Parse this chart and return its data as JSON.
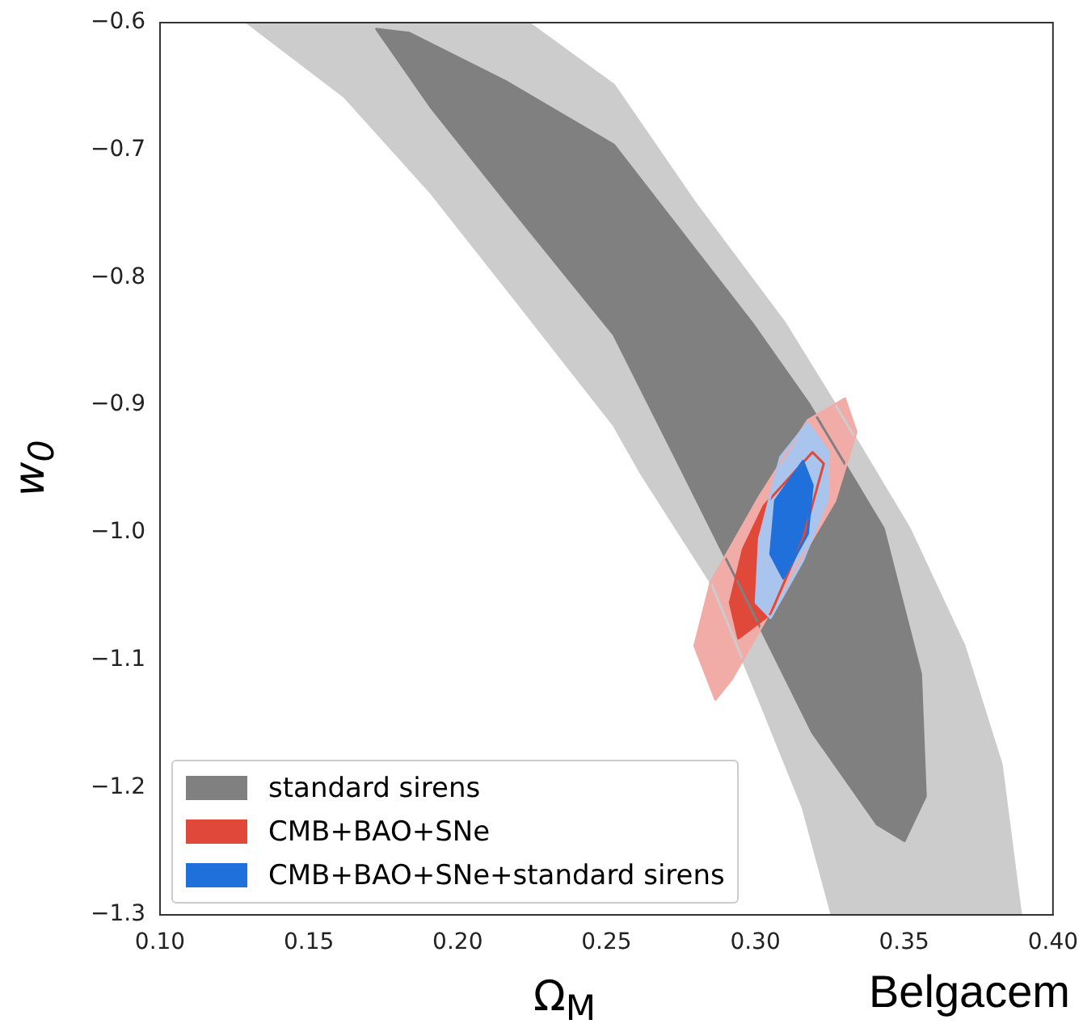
{
  "chart_data": {
    "type": "area",
    "xlabel": "Ω$_{M}$",
    "ylabel": "w$_{0}$",
    "xlim": [
      0.1,
      0.4
    ],
    "ylim": [
      -1.3,
      -0.6
    ],
    "xticks": [
      {
        "value": 0.1,
        "label": "0.10"
      },
      {
        "value": 0.15,
        "label": "0.15"
      },
      {
        "value": 0.2,
        "label": "0.20"
      },
      {
        "value": 0.25,
        "label": "0.25"
      },
      {
        "value": 0.3,
        "label": "0.30"
      },
      {
        "value": 0.35,
        "label": "0.35"
      },
      {
        "value": 0.4,
        "label": "0.40"
      }
    ],
    "yticks": [
      {
        "value": -1.3,
        "label": "−1.3"
      },
      {
        "value": -1.2,
        "label": "−1.2"
      },
      {
        "value": -1.1,
        "label": "−1.1"
      },
      {
        "value": -1.0,
        "label": "−1.0"
      },
      {
        "value": -0.9,
        "label": "−0.9"
      },
      {
        "value": -0.8,
        "label": "−0.8"
      },
      {
        "value": -0.7,
        "label": "−0.7"
      },
      {
        "value": -0.6,
        "label": "−0.6"
      }
    ],
    "grid": false,
    "legend": "bottom left",
    "series": [
      {
        "color": "#cccccc",
        "x": [
          0.1293,
          0.1619,
          0.1912,
          0.2199,
          0.2525,
          0.2617,
          0.285,
          0.3013,
          0.316,
          0.3257,
          0.3892,
          0.3827,
          0.3702,
          0.3518,
          0.329,
          0.31,
          0.2796,
          0.2525,
          0.2237,
          0.1293
        ],
        "values": [
          -0.6,
          -0.658,
          -0.734,
          -0.819,
          -0.916,
          -0.954,
          -1.039,
          -1.131,
          -1.216,
          -1.3,
          -1.3,
          -1.182,
          -1.089,
          -0.997,
          -0.908,
          -0.836,
          -0.741,
          -0.649,
          -0.6,
          -0.6
        ]
      },
      {
        "name": "standard sirens",
        "color": "#808080",
        "x": [
          0.1727,
          0.1912,
          0.2199,
          0.2525,
          0.2742,
          0.2975,
          0.3192,
          0.3409,
          0.3501,
          0.3572,
          0.3556,
          0.3431,
          0.318,
          0.299,
          0.2525,
          0.2161,
          0.1836,
          0.1727
        ],
        "values": [
          -0.605,
          -0.667,
          -0.751,
          -0.845,
          -0.946,
          -1.055,
          -1.157,
          -1.229,
          -1.242,
          -1.207,
          -1.111,
          -0.997,
          -0.899,
          -0.836,
          -0.696,
          -0.646,
          -0.608,
          -0.605
        ]
      },
      {
        "color": "#f2aca7",
        "x": [
          0.3301,
          0.3339,
          0.3268,
          0.3084,
          0.2921,
          0.2866,
          0.2796,
          0.285,
          0.3013,
          0.3176,
          0.3301
        ],
        "values": [
          -0.895,
          -0.921,
          -0.975,
          -1.048,
          -1.115,
          -1.131,
          -1.089,
          -1.039,
          -0.972,
          -0.912,
          -0.895
        ]
      },
      {
        "name": "CMB+BAO+SNe",
        "color": "#e0483a",
        "x": [
          0.3192,
          0.323,
          0.316,
          0.3051,
          0.2943,
          0.2915,
          0.2959,
          0.3029,
          0.3192
        ],
        "values": [
          -0.937,
          -0.946,
          -1.005,
          -1.064,
          -1.083,
          -1.055,
          -1.013,
          -0.979,
          -0.937
        ]
      },
      {
        "color": "#a9c5ee",
        "x": [
          0.3176,
          0.3246,
          0.3241,
          0.316,
          0.3051,
          0.3002,
          0.3013,
          0.3084,
          0.3176
        ],
        "values": [
          -0.914,
          -0.937,
          -0.975,
          -1.022,
          -1.067,
          -1.055,
          -1.005,
          -0.941,
          -0.914
        ]
      },
      {
        "name": "CMB+BAO+SNe+standard sirens",
        "color": "#2070dc",
        "x": [
          0.316,
          0.3192,
          0.3176,
          0.3094,
          0.3051,
          0.3067,
          0.316
        ],
        "values": [
          -0.944,
          -0.963,
          -1.001,
          -1.036,
          -1.017,
          -0.975,
          -0.944
        ]
      }
    ],
    "annotations": [
      "Belgacem"
    ]
  }
}
